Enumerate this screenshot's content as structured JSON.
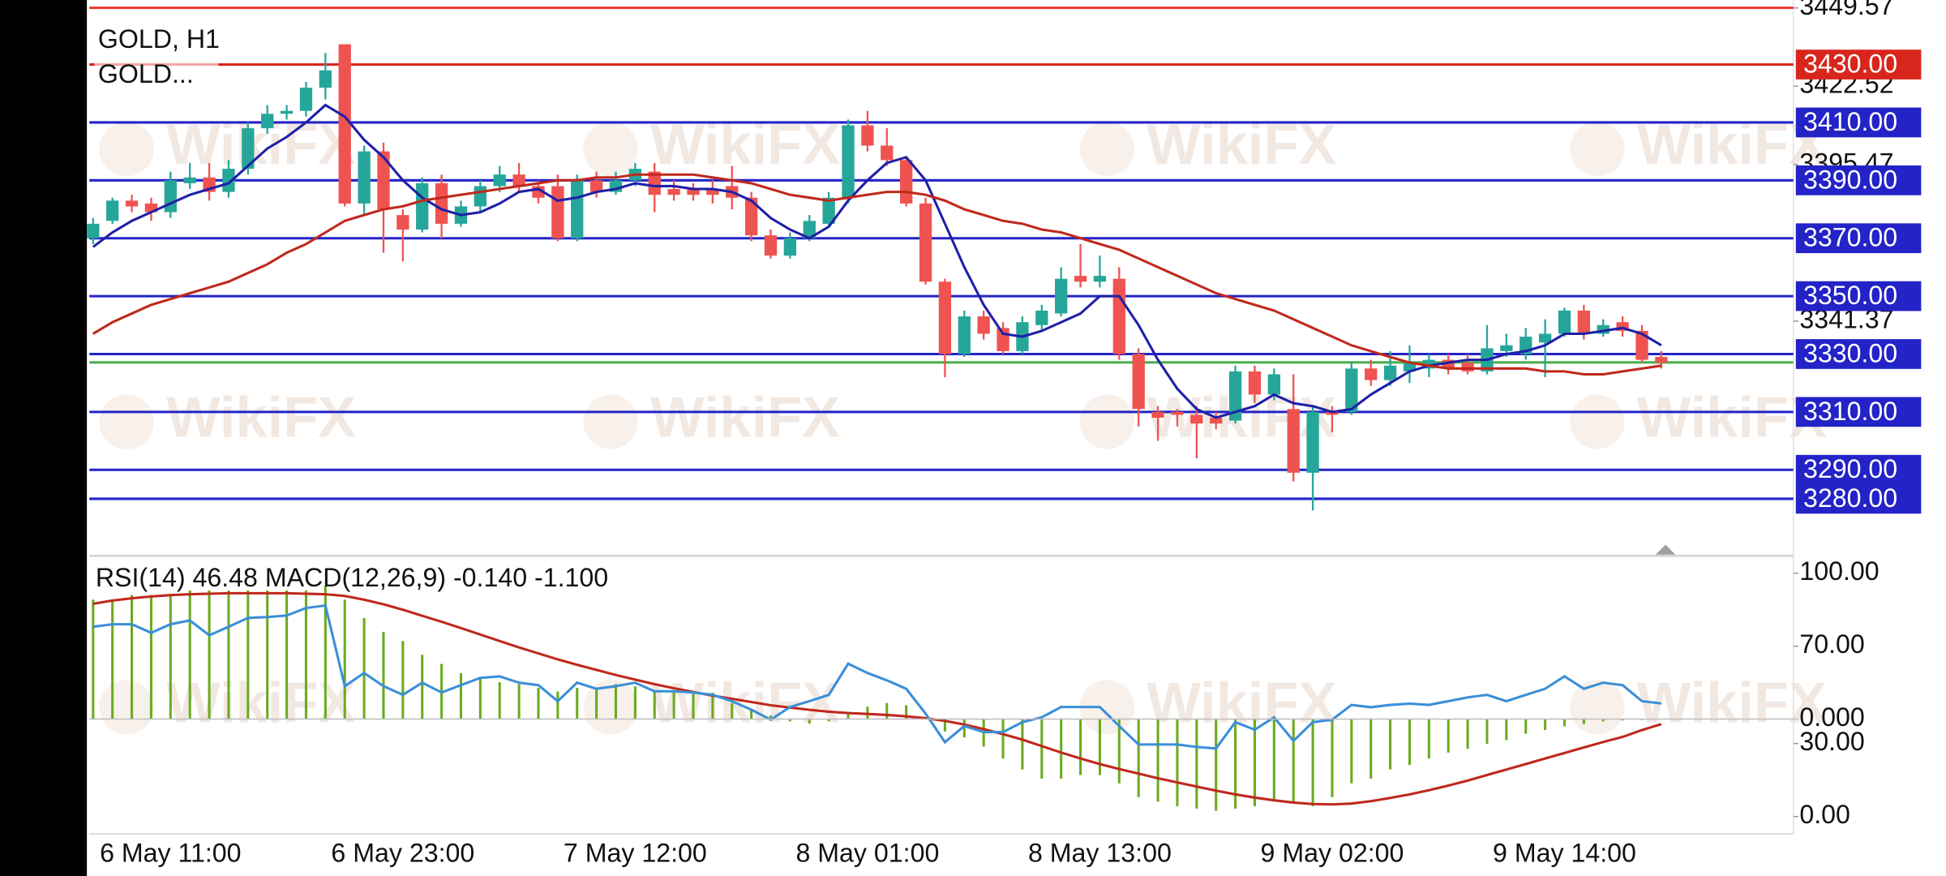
{
  "chart_data": [
    {
      "type": "candlestick",
      "title": "GOLD, H1",
      "legend": "GOLD...",
      "watermark": "WikiFX",
      "categories": [
        null,
        null,
        null,
        null,
        "6 May 11:00",
        null,
        null,
        null,
        null,
        null,
        null,
        null,
        null,
        null,
        null,
        null,
        "6 May 23:00",
        null,
        null,
        null,
        null,
        null,
        null,
        null,
        null,
        null,
        null,
        null,
        "7 May 12:00",
        null,
        null,
        null,
        null,
        null,
        null,
        null,
        null,
        null,
        null,
        null,
        "8 May 01:00",
        null,
        null,
        null,
        null,
        null,
        null,
        null,
        null,
        null,
        null,
        null,
        "8 May 13:00",
        null,
        null,
        null,
        null,
        null,
        null,
        null,
        null,
        null,
        null,
        null,
        "9 May 02:00",
        null,
        null,
        null,
        null,
        null,
        null,
        null,
        null,
        null,
        null,
        null,
        "9 May 14:00",
        null,
        null,
        null,
        null,
        null
      ],
      "open": [
        3370,
        3376,
        3383,
        3382,
        3379,
        3389,
        3391,
        3386,
        3394,
        3408,
        3413,
        3414,
        3422,
        3437,
        3382,
        3400,
        3378,
        3373,
        3389,
        3375,
        3381,
        3388,
        3392,
        3388,
        3388,
        3370,
        3390,
        3386,
        3390,
        3393,
        3387,
        3387,
        3387,
        3388,
        3384,
        3371,
        3364,
        3370,
        3375,
        3384,
        3409,
        3402,
        3397,
        3382,
        3355,
        3330,
        3343,
        3339,
        3331,
        3340,
        3344,
        3357,
        3355,
        3356,
        3330,
        3310,
        3310,
        3309,
        3308,
        3307,
        3324,
        3316,
        3311,
        3289,
        3310,
        3310,
        3325,
        3321,
        3324,
        3325,
        3328,
        3327,
        3324,
        3331,
        3330,
        3334,
        3337,
        3345,
        3337,
        3341,
        3338,
        3329
      ],
      "high": [
        3377,
        3384,
        3385,
        3384,
        3393,
        3396,
        3396,
        3397,
        3410,
        3416,
        3416,
        3424,
        3434,
        3437,
        3402,
        3403,
        3380,
        3391,
        3392,
        3383,
        3390,
        3395,
        3396,
        3390,
        3392,
        3392,
        3393,
        3393,
        3396,
        3396,
        3390,
        3389,
        3390,
        3395,
        3386,
        3373,
        3372,
        3378,
        3386,
        3411,
        3414,
        3408,
        3398,
        3384,
        3356,
        3345,
        3345,
        3341,
        3343,
        3347,
        3360,
        3368,
        3364,
        3360,
        3332,
        3312,
        3311,
        3312,
        3310,
        3326,
        3326,
        3325,
        3323,
        3312,
        3312,
        3327,
        3328,
        3331,
        3333,
        3330,
        3330,
        3330,
        3340,
        3337,
        3339,
        3342,
        3346,
        3347,
        3342,
        3343,
        3340,
        3331
      ],
      "low": [
        3368,
        3375,
        3379,
        3376,
        3377,
        3387,
        3383,
        3384,
        3392,
        3406,
        3411,
        3412,
        3418,
        3381,
        3378,
        3365,
        3362,
        3372,
        3370,
        3374,
        3379,
        3386,
        3386,
        3382,
        3369,
        3369,
        3384,
        3385,
        3388,
        3379,
        3383,
        3383,
        3382,
        3380,
        3369,
        3363,
        3363,
        3369,
        3374,
        3382,
        3400,
        3395,
        3381,
        3354,
        3322,
        3329,
        3335,
        3330,
        3330,
        3338,
        3343,
        3353,
        3353,
        3328,
        3305,
        3300,
        3305,
        3294,
        3304,
        3306,
        3313,
        3314,
        3286,
        3276,
        3303,
        3309,
        3319,
        3319,
        3320,
        3322,
        3323,
        3323,
        3323,
        3329,
        3328,
        3322,
        3336,
        3335,
        3336,
        3336,
        3327,
        3325
      ],
      "close": [
        3375,
        3383,
        3381,
        3379,
        3390,
        3391,
        3386,
        3394,
        3408,
        3413,
        3414,
        3422,
        3428,
        3382,
        3400,
        3380,
        3373,
        3389,
        3375,
        3381,
        3388,
        3392,
        3388,
        3384,
        3370,
        3390,
        3386,
        3390,
        3394,
        3385,
        3385,
        3385,
        3385,
        3384,
        3371,
        3364,
        3370,
        3376,
        3384,
        3409,
        3402,
        3397,
        3382,
        3355,
        3330,
        3343,
        3337,
        3331,
        3341,
        3345,
        3356,
        3355,
        3357,
        3330,
        3311,
        3308,
        3309,
        3306,
        3306,
        3324,
        3316,
        3323,
        3289,
        3310,
        3309,
        3325,
        3321,
        3326,
        3327,
        3328,
        3325,
        3324,
        3332,
        3333,
        3336,
        3337,
        3345,
        3337,
        3340,
        3338,
        3328,
        3327
      ],
      "up_color": "#26a69a",
      "down_color": "#ef5350",
      "series": [
        {
          "color": "#1f1fa8",
          "values": [
            3367,
            3372,
            3376,
            3379,
            3382,
            3385,
            3387,
            3389,
            3395,
            3401,
            3405,
            3410,
            3416,
            3412,
            3404,
            3398,
            3390,
            3384,
            3380,
            3378,
            3379,
            3382,
            3386,
            3387,
            3383,
            3384,
            3386,
            3387,
            3389,
            3388,
            3388,
            3387,
            3387,
            3386,
            3383,
            3377,
            3373,
            3370,
            3374,
            3383,
            3390,
            3396,
            3398,
            3390,
            3375,
            3360,
            3347,
            3337,
            3336,
            3338,
            3341,
            3344,
            3350,
            3350,
            3340,
            3328,
            3318,
            3311,
            3308,
            3310,
            3312,
            3316,
            3313,
            3312,
            3310,
            3311,
            3316,
            3320,
            3324,
            3326,
            3327,
            3328,
            3328,
            3330,
            3331,
            3333,
            3337,
            3337,
            3338,
            3339,
            3337,
            3333
          ]
        },
        {
          "color": "#c0281c",
          "values": [
            3337,
            3341,
            3344,
            3347,
            3349,
            3351,
            3353,
            3355,
            3358,
            3361,
            3365,
            3368,
            3372,
            3376,
            3378,
            3380,
            3381,
            3383,
            3384,
            3385,
            3386,
            3387,
            3388,
            3389,
            3390,
            3390,
            3391,
            3391,
            3392,
            3392,
            3392,
            3392,
            3391,
            3390,
            3389,
            3387,
            3385,
            3384,
            3383,
            3384,
            3385,
            3386,
            3386,
            3385,
            3383,
            3380,
            3378,
            3376,
            3375,
            3373,
            3372,
            3370,
            3368,
            3366,
            3363,
            3360,
            3357,
            3354,
            3351,
            3349,
            3347,
            3345,
            3342,
            3339,
            3336,
            3333,
            3331,
            3329,
            3327,
            3326,
            3325,
            3325,
            3325,
            3325,
            3325,
            3324,
            3324,
            3323,
            3323,
            3324,
            3325,
            3326
          ]
        }
      ],
      "levels": [
        {
          "value": 3449.6,
          "color": "#e53935"
        },
        {
          "value": 3430,
          "label": "3430.00",
          "color": "#d8261c"
        },
        {
          "value": 3410,
          "label": "3410.00",
          "color": "#2323c8"
        },
        {
          "value": 3390,
          "label": "3390.00",
          "color": "#2323c8"
        },
        {
          "value": 3370,
          "label": "3370.00",
          "color": "#2323c8"
        },
        {
          "value": 3350,
          "label": "3350.00",
          "color": "#2323c8"
        },
        {
          "value": 3330,
          "label": "3330.00",
          "color": "#2323c8"
        },
        {
          "value": 3327.1,
          "color": "#4caf50"
        },
        {
          "value": 3310,
          "label": "3310.00",
          "color": "#2323c8"
        },
        {
          "value": 3290,
          "label": "3290.00",
          "color": "#2323c8"
        },
        {
          "value": 3280,
          "label": "3280.00",
          "color": "#2323c8"
        }
      ],
      "ylim": [
        3260.7,
        3452.3
      ],
      "yticks": [
        3449.57,
        3422.52,
        3395.47,
        3341.37
      ]
    },
    {
      "type": "indicator",
      "title": "RSI(14) 46.48 MACD(12,26,9) -0.140 -1.100",
      "ylim": [
        -7.1,
        106.1
      ],
      "yticks": [
        {
          "value": 100,
          "label": "100.00"
        },
        {
          "value": 70,
          "label": "70.00"
        },
        {
          "value": 30,
          "label": "30.00"
        },
        {
          "value": 0,
          "label": "0.00"
        }
      ],
      "y2lim": [
        -25,
        35
      ],
      "y2ticks": [
        {
          "value": 0,
          "label": "0.000"
        }
      ],
      "series": [
        {
          "type": "bar",
          "axis": "y2",
          "color": "#6aab1e",
          "values": [
            26,
            26,
            27,
            27,
            27,
            28,
            28,
            28,
            28,
            28,
            28,
            28,
            29,
            26,
            22,
            19,
            17,
            14,
            12,
            10,
            9,
            8,
            7.6,
            6.8,
            6,
            6.8,
            6.8,
            7.6,
            7.1,
            6.3,
            6,
            6,
            5.7,
            3.5,
            2.2,
            0.8,
            -0.5,
            -1,
            -0.5,
            1.6,
            2.7,
            3.5,
            3,
            0,
            -2.7,
            -4,
            -6,
            -8.6,
            -11,
            -13,
            -13,
            -12.2,
            -12.2,
            -14,
            -17,
            -18,
            -19,
            -19.5,
            -20,
            -19.5,
            -19,
            -18,
            -18,
            -19,
            -17,
            -14,
            -13,
            -11,
            -10,
            -8.6,
            -7.3,
            -6.5,
            -5.4,
            -4.6,
            -3.2,
            -2.4,
            -1.6,
            -1.1,
            -0.5,
            -0.3,
            -0.2,
            -0.14
          ]
        },
        {
          "type": "line",
          "axis": "y2",
          "color": "#c0281c",
          "values": [
            25.1,
            25.8,
            26.3,
            26.7,
            27,
            27.2,
            27.3,
            27.4,
            27.4,
            27.4,
            27.4,
            27.3,
            27.2,
            26.8,
            26,
            25,
            23.8,
            22.5,
            21.2,
            19.8,
            18.4,
            17,
            15.6,
            14.3,
            13,
            11.8,
            10.7,
            9.6,
            8.6,
            7.6,
            6.7,
            5.9,
            5.1,
            4.4,
            3.7,
            3,
            2.5,
            2,
            1.6,
            1.3,
            1.1,
            0.9,
            0.6,
            0.2,
            -0.4,
            -1.2,
            -2.2,
            -3.3,
            -4.5,
            -5.9,
            -7.3,
            -8.6,
            -9.8,
            -10.9,
            -11.9,
            -12.9,
            -13.8,
            -14.7,
            -15.6,
            -16.4,
            -17.1,
            -17.7,
            -18.2,
            -18.5,
            -18.6,
            -18.4,
            -17.9,
            -17.2,
            -16.4,
            -15.5,
            -14.5,
            -13.4,
            -12.2,
            -11,
            -9.8,
            -8.6,
            -7.4,
            -6.2,
            -5,
            -3.9,
            -2.4,
            -1.1
          ]
        },
        {
          "type": "line",
          "color": "#3a8fd8",
          "values": [
            78,
            79,
            79,
            75.5,
            79,
            80.6,
            74.5,
            78,
            81.6,
            82,
            82.6,
            85.7,
            86.7,
            53.6,
            59,
            53.6,
            50,
            55,
            51,
            54,
            57,
            57.6,
            55,
            54,
            47.4,
            55,
            52.5,
            53.6,
            55,
            51.5,
            51.5,
            51,
            50,
            47.4,
            43.9,
            39.8,
            45,
            47.4,
            50,
            62.8,
            59,
            56,
            52.5,
            42.3,
            30.6,
            37.2,
            34.7,
            34.7,
            38.8,
            40.8,
            45,
            45,
            45,
            37.2,
            29.6,
            29.6,
            29.6,
            28.6,
            28,
            38.8,
            35.7,
            40.8,
            31.1,
            38.8,
            39.8,
            45.9,
            44.9,
            45.9,
            46.4,
            45.9,
            47.4,
            49,
            50,
            47.4,
            50,
            52.5,
            57.6,
            52.5,
            55,
            54,
            47.4,
            46.48
          ]
        }
      ]
    }
  ]
}
